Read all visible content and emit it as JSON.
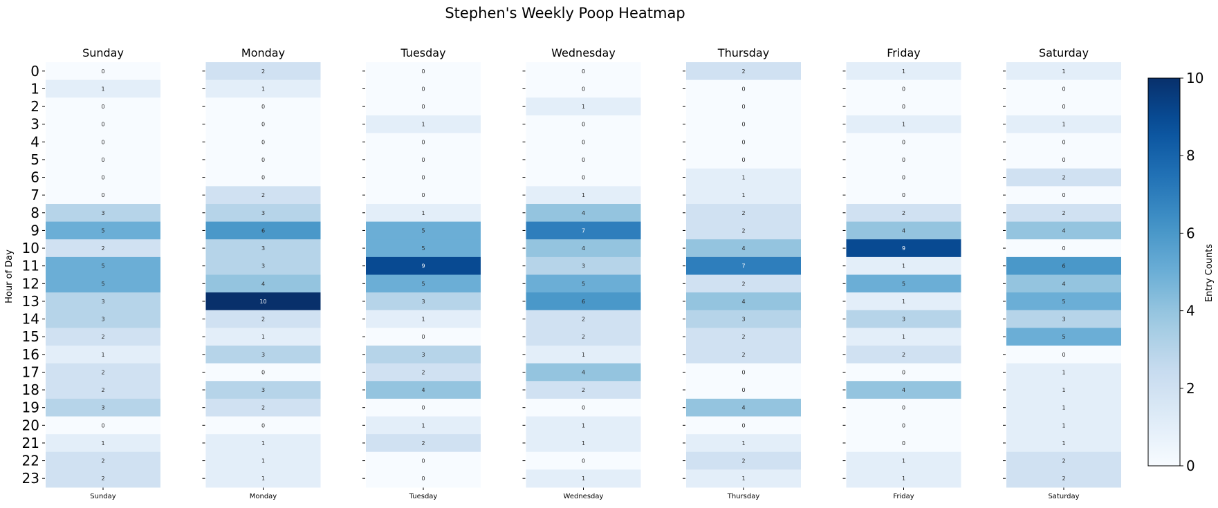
{
  "chart_data": {
    "type": "heatmap",
    "title": "Stephen's Weekly Poop Heatmap",
    "ylabel": "Hour of Day",
    "colorbar_label": "Entry Counts",
    "colorscale": "Blues",
    "color_range": [
      0,
      10
    ],
    "colorbar_ticks": [
      "0",
      "2",
      "4",
      "6",
      "8",
      "10"
    ],
    "hours": [
      "0",
      "1",
      "2",
      "3",
      "4",
      "5",
      "6",
      "7",
      "8",
      "9",
      "10",
      "11",
      "12",
      "13",
      "14",
      "15",
      "16",
      "17",
      "18",
      "19",
      "20",
      "21",
      "22",
      "23"
    ],
    "days": [
      "Sunday",
      "Monday",
      "Tuesday",
      "Wednesday",
      "Thursday",
      "Friday",
      "Saturday"
    ],
    "values": {
      "Sunday": [
        0,
        1,
        0,
        0,
        0,
        0,
        0,
        0,
        3,
        5,
        2,
        5,
        5,
        3,
        3,
        2,
        1,
        2,
        2,
        3,
        0,
        1,
        2,
        2
      ],
      "Monday": [
        2,
        1,
        0,
        0,
        0,
        0,
        0,
        2,
        3,
        6,
        3,
        3,
        4,
        10,
        2,
        1,
        3,
        0,
        3,
        2,
        0,
        1,
        1,
        1
      ],
      "Tuesday": [
        0,
        0,
        0,
        1,
        0,
        0,
        0,
        0,
        1,
        5,
        5,
        9,
        5,
        3,
        1,
        0,
        3,
        2,
        4,
        0,
        1,
        2,
        0,
        0
      ],
      "Wednesday": [
        0,
        0,
        1,
        0,
        0,
        0,
        0,
        1,
        4,
        7,
        4,
        3,
        5,
        6,
        2,
        2,
        1,
        4,
        2,
        0,
        1,
        1,
        0,
        1
      ],
      "Thursday": [
        2,
        0,
        0,
        0,
        0,
        0,
        1,
        1,
        2,
        2,
        4,
        7,
        2,
        4,
        3,
        2,
        2,
        0,
        0,
        4,
        0,
        1,
        2,
        1
      ],
      "Friday": [
        1,
        0,
        0,
        1,
        0,
        0,
        0,
        0,
        2,
        4,
        9,
        1,
        5,
        1,
        3,
        1,
        2,
        0,
        4,
        0,
        0,
        0,
        1,
        1
      ],
      "Saturday": [
        1,
        0,
        0,
        1,
        0,
        0,
        2,
        0,
        2,
        4,
        0,
        6,
        4,
        5,
        3,
        5,
        0,
        1,
        1,
        1,
        1,
        1,
        2,
        2
      ]
    }
  }
}
